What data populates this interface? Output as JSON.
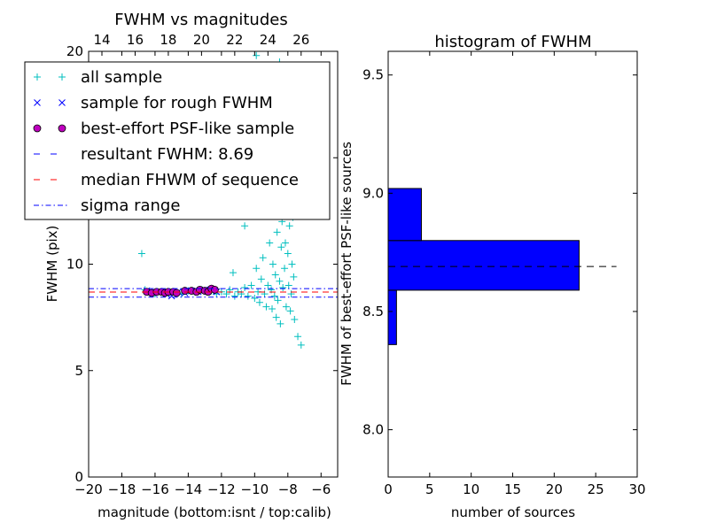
{
  "chart_data": [
    {
      "type": "scatter",
      "title": "FWHM vs magnitudes",
      "xlabel": "magnitude (bottom:isnt / top:calib)",
      "ylabel": "FWHM (pix)",
      "xlim": [
        -20,
        -5
      ],
      "ylim": [
        0,
        20
      ],
      "xticks_bottom": [
        -20,
        -18,
        -16,
        -14,
        -12,
        -10,
        -8,
        -6
      ],
      "xtick_labels_bottom": [
        "−20",
        "−18",
        "−16",
        "−14",
        "−12",
        "−10",
        "−8",
        "−6"
      ],
      "xticks_top": [
        14,
        16,
        18,
        20,
        22,
        24,
        26
      ],
      "xtick_labels_top": [
        "14",
        "16",
        "18",
        "20",
        "22",
        "24",
        "26"
      ],
      "top_axis_zero_point": 33.2,
      "yticks": [
        0,
        5,
        10,
        15,
        20
      ],
      "ytick_labels": [
        "0",
        "5",
        "10",
        "",
        "20"
      ],
      "legend_position": "top-left",
      "legend": [
        {
          "label": "all sample",
          "marker": "+",
          "color": "#00bfbf"
        },
        {
          "label": "sample for rough FWHM",
          "marker": "x",
          "color": "#0000ff"
        },
        {
          "label": "best-effort PSF-like sample",
          "marker": "o",
          "color": "#bf00bf"
        },
        {
          "label": "resultant FWHM: 8.69",
          "line": "dashed",
          "color": "#0000ff"
        },
        {
          "label": "median FHWM of sequence",
          "line": "dashed",
          "color": "#ff0000"
        },
        {
          "label": "sigma range",
          "line": "dashdot",
          "color": "#0000ff"
        }
      ],
      "hlines": [
        {
          "name": "resultant FWHM",
          "y": 8.69,
          "color": "#0000ff",
          "style": "dashed"
        },
        {
          "name": "median FHWM of sequence",
          "y": 8.69,
          "color": "#ff0000",
          "style": "dashed"
        },
        {
          "name": "sigma range upper",
          "y": 8.85,
          "color": "#0000ff",
          "style": "dashdot"
        },
        {
          "name": "sigma range lower",
          "y": 8.45,
          "color": "#0000ff",
          "style": "dashdot"
        }
      ],
      "series": [
        {
          "name": "all sample",
          "marker": "+",
          "color": "#00bfbf",
          "points": [
            [
              -16.8,
              10.5
            ],
            [
              -16.6,
              8.8
            ],
            [
              -16.4,
              8.7
            ],
            [
              -16.0,
              8.6
            ],
            [
              -15.6,
              8.7
            ],
            [
              -15.2,
              8.65
            ],
            [
              -14.8,
              8.7
            ],
            [
              -14.4,
              8.6
            ],
            [
              -14.0,
              8.75
            ],
            [
              -13.6,
              8.7
            ],
            [
              -13.2,
              8.8
            ],
            [
              -12.9,
              8.7
            ],
            [
              -12.6,
              8.75
            ],
            [
              -12.3,
              8.6
            ],
            [
              -12.0,
              8.7
            ],
            [
              -11.7,
              8.6
            ],
            [
              -11.5,
              8.8
            ],
            [
              -11.3,
              9.6
            ],
            [
              -11.2,
              8.5
            ],
            [
              -11.0,
              8.7
            ],
            [
              -10.8,
              8.6
            ],
            [
              -10.6,
              8.9
            ],
            [
              -10.4,
              8.5
            ],
            [
              -10.2,
              9.0
            ],
            [
              -10.0,
              8.4
            ],
            [
              -9.9,
              9.8
            ],
            [
              -9.8,
              8.7
            ],
            [
              -9.7,
              8.2
            ],
            [
              -9.6,
              9.3
            ],
            [
              -9.5,
              10.3
            ],
            [
              -9.4,
              8.6
            ],
            [
              -9.3,
              8.0
            ],
            [
              -9.2,
              9.0
            ],
            [
              -9.1,
              11.0
            ],
            [
              -9.0,
              8.8
            ],
            [
              -8.95,
              7.9
            ],
            [
              -8.9,
              10.0
            ],
            [
              -8.85,
              12.5
            ],
            [
              -8.8,
              8.5
            ],
            [
              -8.75,
              9.5
            ],
            [
              -8.7,
              7.5
            ],
            [
              -8.65,
              11.5
            ],
            [
              -8.6,
              8.3
            ],
            [
              -8.55,
              13.2
            ],
            [
              -8.5,
              9.2
            ],
            [
              -8.45,
              7.2
            ],
            [
              -8.4,
              10.8
            ],
            [
              -8.35,
              12.0
            ],
            [
              -8.3,
              8.9
            ],
            [
              -8.25,
              14.0
            ],
            [
              -8.2,
              9.8
            ],
            [
              -8.15,
              11.0
            ],
            [
              -8.1,
              8.0
            ],
            [
              -8.05,
              13.0
            ],
            [
              -8.0,
              10.5
            ],
            [
              -7.95,
              9.0
            ],
            [
              -7.9,
              11.8
            ],
            [
              -7.85,
              7.8
            ],
            [
              -7.8,
              8.6
            ],
            [
              -7.75,
              10.0
            ],
            [
              -7.7,
              12.2
            ],
            [
              -7.65,
              9.4
            ],
            [
              -7.6,
              7.4
            ],
            [
              -7.4,
              6.6
            ],
            [
              -7.2,
              6.2
            ],
            [
              -9.8,
              13.5
            ],
            [
              -9.2,
              15.0
            ],
            [
              -10.6,
              11.8
            ],
            [
              -9.6,
              16.5
            ],
            [
              -8.8,
              17.0
            ],
            [
              -9.3,
              18.5
            ],
            [
              -8.5,
              19.5
            ],
            [
              -9.9,
              19.8
            ],
            [
              -8.2,
              18.0
            ],
            [
              -8.9,
              14.5
            ],
            [
              -9.5,
              12.3
            ],
            [
              -8.6,
              15.8
            ],
            [
              -10.2,
              13.0
            ],
            [
              -9.0,
              16.0
            ],
            [
              -8.4,
              14.8
            ]
          ]
        },
        {
          "name": "sample for rough FWHM",
          "marker": "x",
          "color": "#0000ff",
          "points": [
            [
              -16.5,
              8.75
            ],
            [
              -16.1,
              8.65
            ],
            [
              -15.7,
              8.7
            ],
            [
              -15.3,
              8.6
            ],
            [
              -15.0,
              8.5
            ],
            [
              -14.6,
              8.7
            ],
            [
              -14.2,
              8.65
            ],
            [
              -13.8,
              8.75
            ],
            [
              -13.4,
              8.7
            ],
            [
              -13.0,
              8.8
            ],
            [
              -12.6,
              8.75
            ],
            [
              -12.3,
              8.7
            ]
          ]
        },
        {
          "name": "best-effort PSF-like sample",
          "marker": "o",
          "color": "#bf00bf",
          "points": [
            [
              -16.5,
              8.7
            ],
            [
              -16.2,
              8.65
            ],
            [
              -15.9,
              8.7
            ],
            [
              -15.6,
              8.7
            ],
            [
              -15.4,
              8.65
            ],
            [
              -15.2,
              8.7
            ],
            [
              -14.9,
              8.7
            ],
            [
              -14.7,
              8.65
            ],
            [
              -14.2,
              8.75
            ],
            [
              -13.8,
              8.75
            ],
            [
              -13.5,
              8.7
            ],
            [
              -13.3,
              8.8
            ],
            [
              -13.0,
              8.75
            ],
            [
              -12.8,
              8.7
            ],
            [
              -12.6,
              8.85
            ],
            [
              -12.4,
              8.8
            ]
          ]
        }
      ]
    },
    {
      "type": "bar",
      "orientation": "horizontal",
      "title": "histogram of FWHM",
      "xlabel": "number of sources",
      "ylabel": "FWHM of best-effort PSF-like sources",
      "xlim": [
        0,
        30
      ],
      "ylim": [
        7.8,
        9.6
      ],
      "xticks": [
        0,
        5,
        10,
        15,
        20,
        25,
        30
      ],
      "xtick_labels": [
        "0",
        "5",
        "10",
        "15",
        "20",
        "25",
        "30"
      ],
      "yticks": [
        8.0,
        8.5,
        9.0,
        9.5
      ],
      "ytick_labels": [
        "8.0",
        "8.5",
        "9.0",
        "9.5"
      ],
      "bar_color": "#0000ff",
      "bins": [
        {
          "y0": 8.36,
          "y1": 8.59,
          "count": 1
        },
        {
          "y0": 8.59,
          "y1": 8.8,
          "count": 23
        },
        {
          "y0": 8.8,
          "y1": 9.02,
          "count": 4
        }
      ],
      "hline": {
        "y": 8.69,
        "x0": 0,
        "x1": 27.5,
        "color": "#000000",
        "style": "dashed"
      }
    }
  ]
}
